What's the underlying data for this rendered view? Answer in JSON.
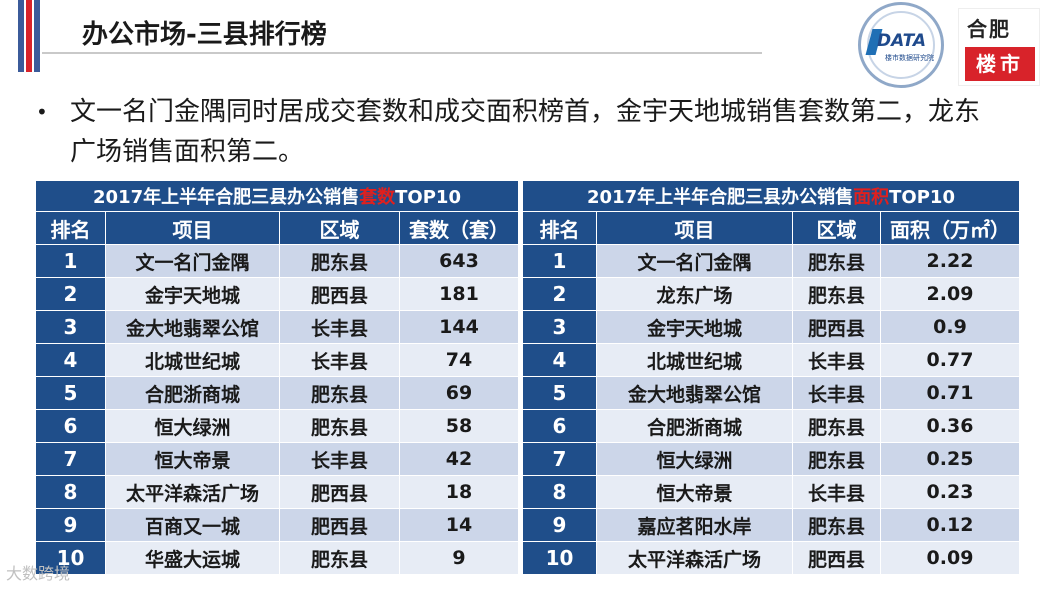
{
  "header": {
    "title": "办公市场-三县排行榜",
    "colors": {
      "flag_blue": "#3b5b9a",
      "flag_red": "#d8232a"
    }
  },
  "logos": {
    "data_logo": {
      "text": "DATA",
      "subtext": "楼市数据研究院"
    },
    "hefei_logo": {
      "top": "合肥",
      "bottom": "楼市"
    }
  },
  "bullet": {
    "text": "文一名门金隅同时居成交套数和成交面积榜首，金宇天地城销售套数第二，龙东广场销售面积第二。"
  },
  "table_count": {
    "caption_prefix": "2017年上半年合肥三县办公销售",
    "caption_highlight": "套数",
    "caption_suffix": "TOP10",
    "columns": [
      "排名",
      "项目",
      "区域",
      "套数（套）"
    ],
    "rows": [
      [
        "1",
        "文一名门金隅",
        "肥东县",
        "643"
      ],
      [
        "2",
        "金宇天地城",
        "肥西县",
        "181"
      ],
      [
        "3",
        "金大地翡翠公馆",
        "长丰县",
        "144"
      ],
      [
        "4",
        "北城世纪城",
        "长丰县",
        "74"
      ],
      [
        "5",
        "合肥浙商城",
        "肥东县",
        "69"
      ],
      [
        "6",
        "恒大绿洲",
        "肥东县",
        "58"
      ],
      [
        "7",
        "恒大帝景",
        "长丰县",
        "42"
      ],
      [
        "8",
        "太平洋森活广场",
        "肥西县",
        "18"
      ],
      [
        "9",
        "百商又一城",
        "肥西县",
        "14"
      ],
      [
        "10",
        "华盛大运城",
        "肥东县",
        "9"
      ]
    ]
  },
  "table_area": {
    "caption_prefix": "2017年上半年合肥三县办公销售",
    "caption_highlight": "面积",
    "caption_suffix": "TOP10",
    "columns": [
      "排名",
      "项目",
      "区域",
      "面积（万㎡）"
    ],
    "rows": [
      [
        "1",
        "文一名门金隅",
        "肥东县",
        "2.22"
      ],
      [
        "2",
        "龙东广场",
        "肥东县",
        "2.09"
      ],
      [
        "3",
        "金宇天地城",
        "肥西县",
        "0.9"
      ],
      [
        "4",
        "北城世纪城",
        "长丰县",
        "0.77"
      ],
      [
        "5",
        "金大地翡翠公馆",
        "长丰县",
        "0.71"
      ],
      [
        "6",
        "合肥浙商城",
        "肥东县",
        "0.36"
      ],
      [
        "7",
        "恒大绿洲",
        "肥东县",
        "0.25"
      ],
      [
        "8",
        "恒大帝景",
        "长丰县",
        "0.23"
      ],
      [
        "9",
        "嘉应茗阳水岸",
        "肥东县",
        "0.12"
      ],
      [
        "10",
        "太平洋森活广场",
        "肥西县",
        "0.09"
      ]
    ]
  },
  "watermark": {
    "text": "大数跨境"
  },
  "theme": {
    "table_header": "#1f4e8a",
    "row_odd": "#ccd6e9",
    "row_even": "#e7ecf5",
    "highlight_red": "#e0201e"
  }
}
